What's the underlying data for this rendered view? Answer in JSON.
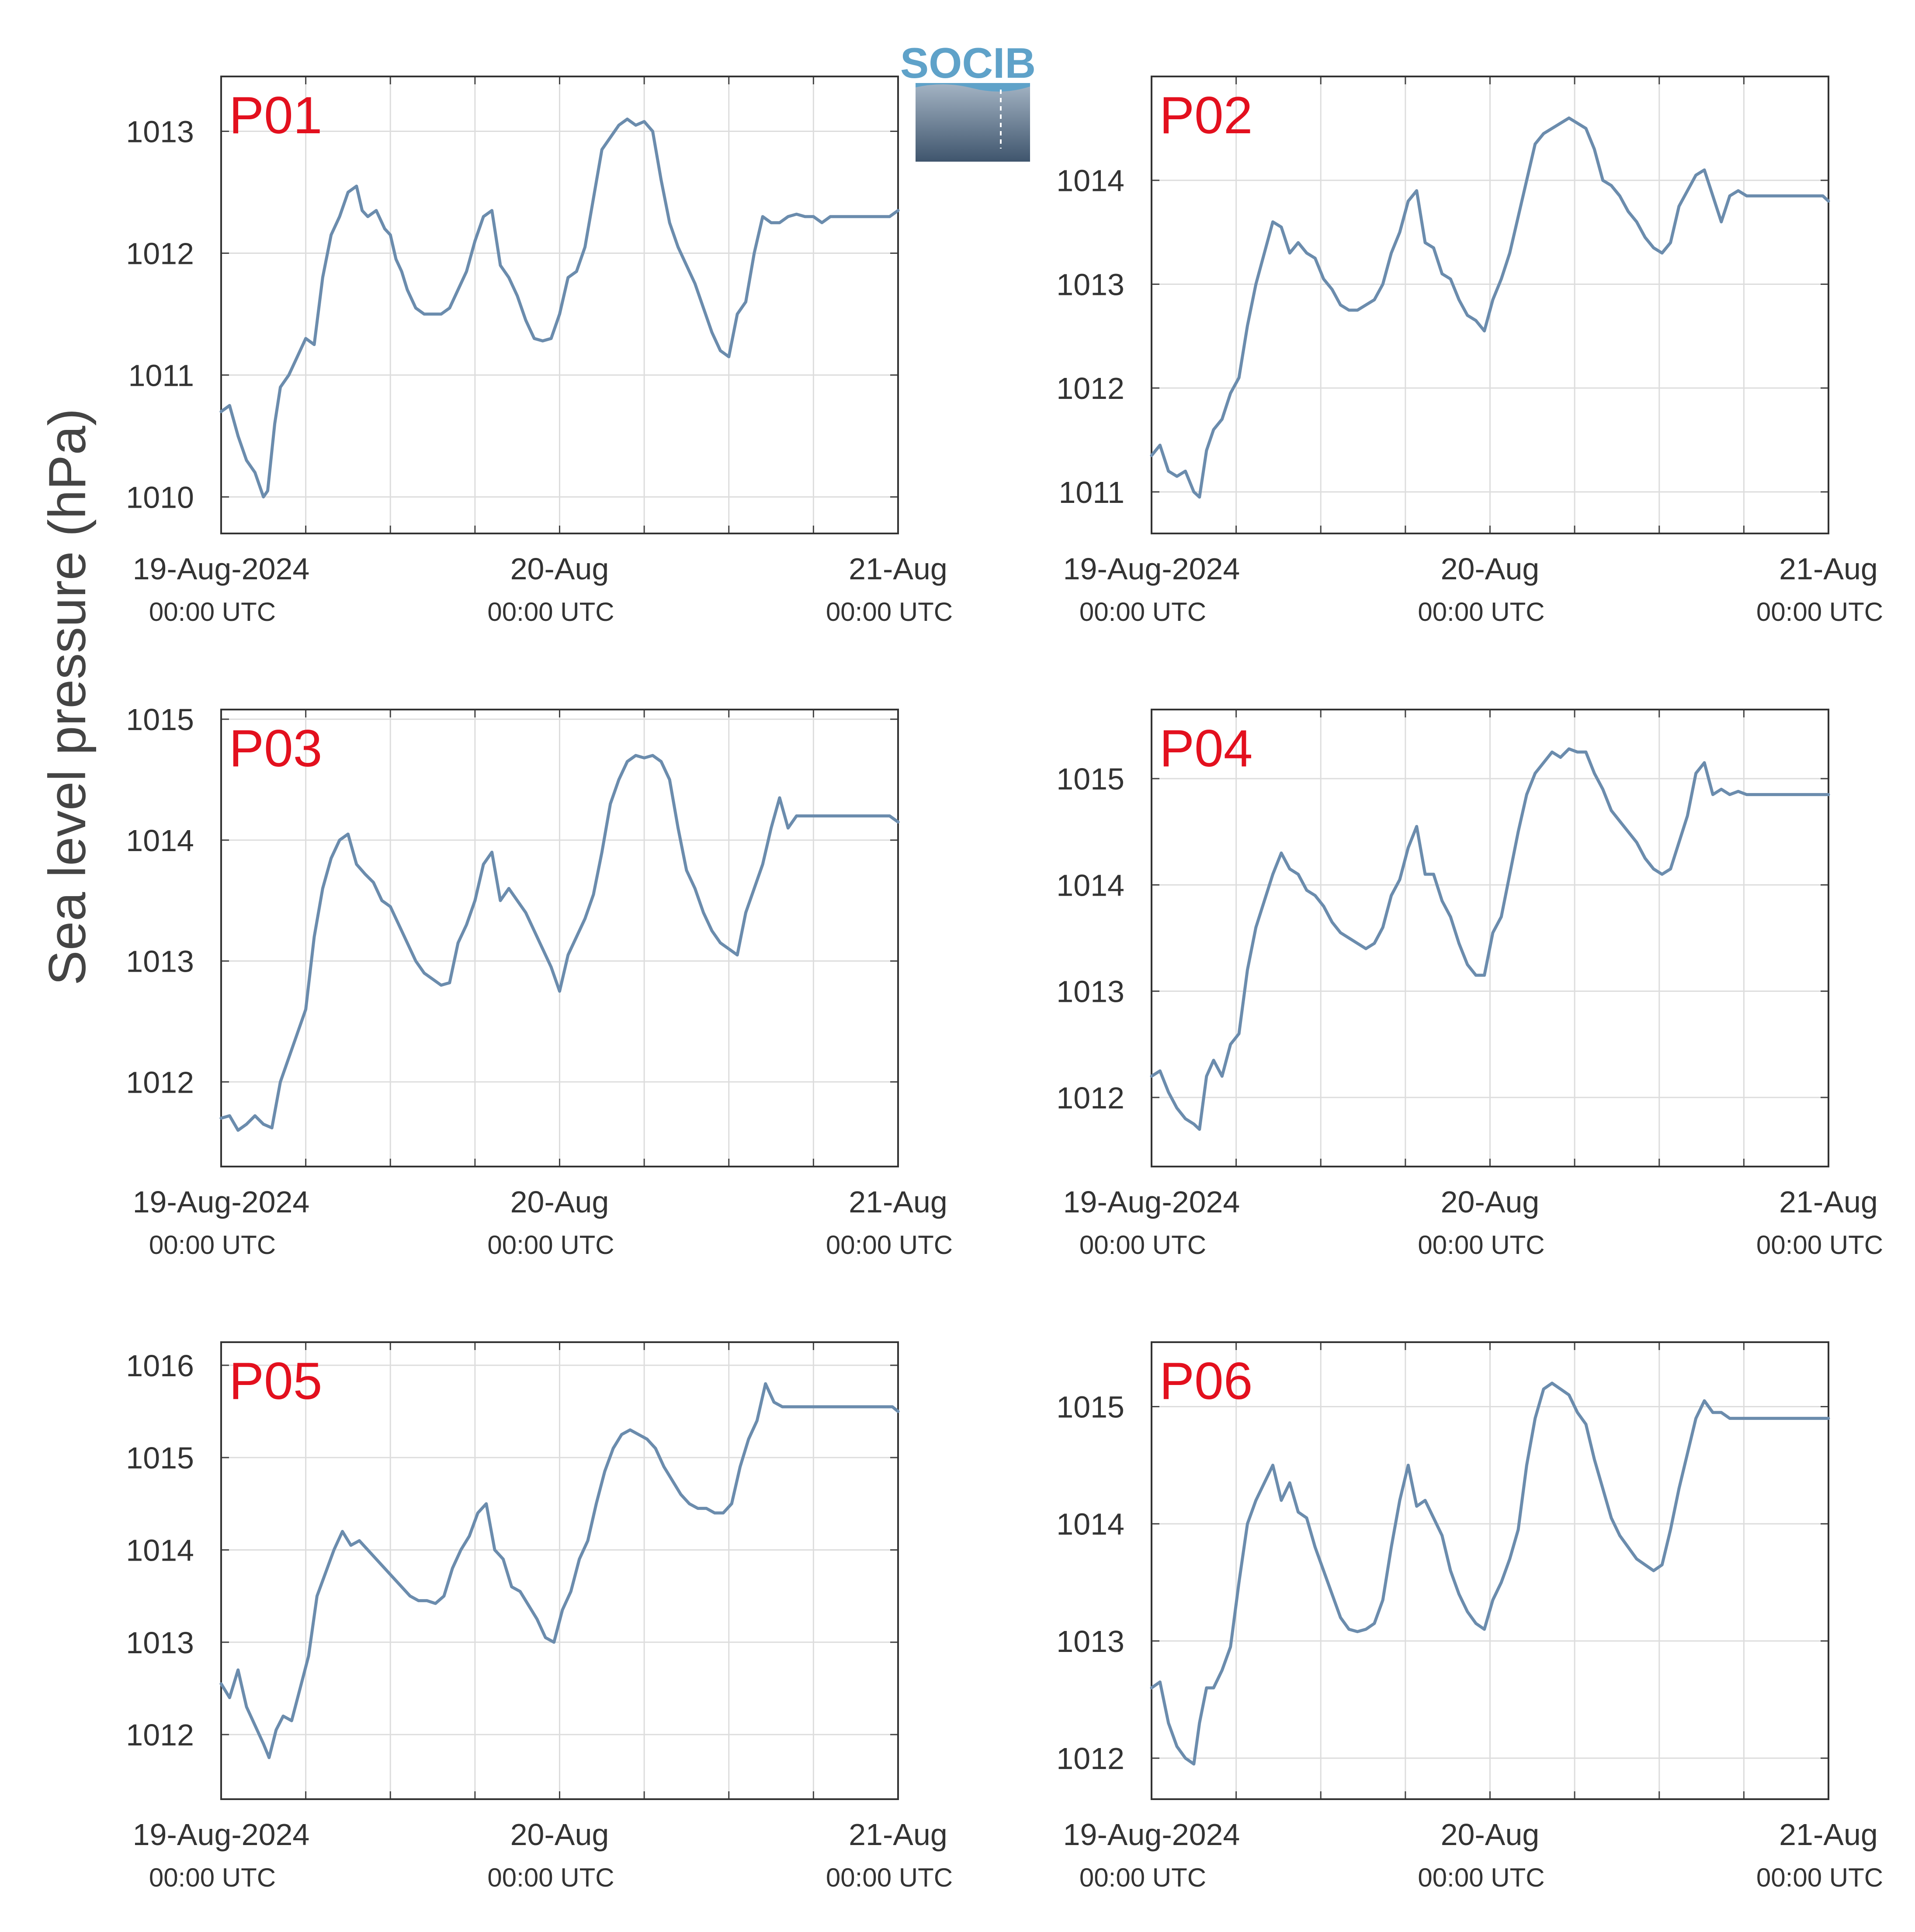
{
  "figure": {
    "ylabel": "Sea level pressure (hPa)",
    "logo_text": "SOCIB",
    "line_color": "#6b8cad",
    "panel_label_color": "#e3101e"
  },
  "x_ticks": [
    {
      "value": 0,
      "date": "19-Aug-2024",
      "time": "00:00 UTC"
    },
    {
      "value": 24,
      "date": "20-Aug",
      "time": "00:00 UTC"
    },
    {
      "value": 48,
      "date": "21-Aug",
      "time": "00:00 UTC"
    }
  ],
  "chart_data": [
    {
      "type": "line",
      "title": "P01",
      "x_unit": "hours since 19-Aug-2024 00:00 UTC",
      "xlim": [
        0,
        48
      ],
      "ylim": [
        1009.7,
        1013.45
      ],
      "yticks": [
        1010,
        1011,
        1012,
        1013
      ],
      "x": [
        0,
        0.6,
        1.2,
        1.8,
        2.4,
        3.0,
        3.3,
        3.8,
        4.2,
        4.8,
        5.4,
        6.0,
        6.6,
        7.2,
        7.8,
        8.4,
        9.0,
        9.6,
        10.0,
        10.4,
        11.0,
        11.6,
        12.0,
        12.4,
        12.8,
        13.2,
        13.8,
        14.4,
        15.0,
        15.6,
        16.2,
        16.8,
        17.4,
        18.0,
        18.6,
        19.2,
        19.8,
        20.4,
        21.0,
        21.6,
        22.2,
        22.8,
        23.4,
        24.0,
        24.6,
        25.2,
        25.8,
        26.4,
        27.0,
        27.6,
        28.2,
        28.8,
        29.4,
        30.0,
        30.6,
        31.2,
        31.8,
        32.4,
        33.0,
        33.6,
        34.2,
        34.8,
        35.4,
        36.0,
        36.6,
        37.2,
        37.8,
        38.4,
        39.0,
        39.6,
        40.2,
        40.8,
        41.4,
        42.0,
        42.6,
        43.2,
        43.8,
        44.4,
        45.0,
        45.6,
        46.2,
        46.8,
        47.4,
        48.0
      ],
      "y": [
        1010.7,
        1010.75,
        1010.5,
        1010.3,
        1010.2,
        1010.0,
        1010.05,
        1010.6,
        1010.9,
        1011.0,
        1011.15,
        1011.3,
        1011.25,
        1011.8,
        1012.15,
        1012.3,
        1012.5,
        1012.55,
        1012.35,
        1012.3,
        1012.35,
        1012.2,
        1012.15,
        1011.95,
        1011.85,
        1011.7,
        1011.55,
        1011.5,
        1011.5,
        1011.5,
        1011.55,
        1011.7,
        1011.85,
        1012.1,
        1012.3,
        1012.35,
        1011.9,
        1011.8,
        1011.65,
        1011.45,
        1011.3,
        1011.28,
        1011.3,
        1011.5,
        1011.8,
        1011.85,
        1012.05,
        1012.45,
        1012.85,
        1012.95,
        1013.05,
        1013.1,
        1013.05,
        1013.08,
        1013.0,
        1012.6,
        1012.25,
        1012.05,
        1011.9,
        1011.75,
        1011.55,
        1011.35,
        1011.2,
        1011.15,
        1011.5,
        1011.6,
        1012.0,
        1012.3,
        1012.25,
        1012.25,
        1012.3,
        1012.32,
        1012.3,
        1012.3,
        1012.25,
        1012.3,
        1012.3,
        1012.3,
        1012.3,
        1012.3,
        1012.3,
        1012.3,
        1012.3,
        1012.35
      ]
    },
    {
      "type": "line",
      "title": "P02",
      "x_unit": "hours since 19-Aug-2024 00:00 UTC",
      "xlim": [
        0,
        48
      ],
      "ylim": [
        1010.6,
        1015.0
      ],
      "yticks": [
        1011,
        1012,
        1013,
        1014
      ],
      "x": [
        0,
        0.6,
        1.2,
        1.8,
        2.4,
        3.0,
        3.4,
        3.9,
        4.4,
        5.0,
        5.6,
        6.2,
        6.8,
        7.4,
        8.0,
        8.6,
        9.2,
        9.8,
        10.4,
        11.0,
        11.6,
        12.2,
        12.8,
        13.4,
        14.0,
        14.6,
        15.2,
        15.8,
        16.4,
        17.0,
        17.6,
        18.2,
        18.8,
        19.4,
        20.0,
        20.6,
        21.2,
        21.8,
        22.4,
        23.0,
        23.6,
        24.2,
        24.8,
        25.4,
        26.0,
        26.6,
        27.2,
        27.8,
        28.4,
        29.0,
        29.6,
        30.2,
        30.8,
        31.4,
        32.0,
        32.6,
        33.2,
        33.8,
        34.4,
        35.0,
        35.6,
        36.2,
        36.8,
        37.4,
        38.0,
        38.6,
        39.2,
        39.8,
        40.4,
        41.0,
        41.6,
        42.2,
        42.8,
        43.4,
        44.0,
        44.6,
        45.2,
        45.8,
        46.4,
        47.0,
        47.6,
        48.0
      ],
      "y": [
        1011.35,
        1011.45,
        1011.2,
        1011.15,
        1011.2,
        1011.0,
        1010.95,
        1011.4,
        1011.6,
        1011.7,
        1011.95,
        1012.1,
        1012.6,
        1013.0,
        1013.3,
        1013.6,
        1013.55,
        1013.3,
        1013.4,
        1013.3,
        1013.25,
        1013.05,
        1012.95,
        1012.8,
        1012.75,
        1012.75,
        1012.8,
        1012.85,
        1013.0,
        1013.3,
        1013.5,
        1013.8,
        1013.9,
        1013.4,
        1013.35,
        1013.1,
        1013.05,
        1012.85,
        1012.7,
        1012.65,
        1012.55,
        1012.85,
        1013.05,
        1013.3,
        1013.65,
        1014.0,
        1014.35,
        1014.45,
        1014.5,
        1014.55,
        1014.6,
        1014.55,
        1014.5,
        1014.3,
        1014.0,
        1013.95,
        1013.85,
        1013.7,
        1013.6,
        1013.45,
        1013.35,
        1013.3,
        1013.4,
        1013.75,
        1013.9,
        1014.05,
        1014.1,
        1013.85,
        1013.6,
        1013.85,
        1013.9,
        1013.85,
        1013.85,
        1013.85,
        1013.85,
        1013.85,
        1013.85,
        1013.85,
        1013.85,
        1013.85,
        1013.85,
        1013.8
      ]
    },
    {
      "type": "line",
      "title": "P03",
      "x_unit": "hours since 19-Aug-2024 00:00 UTC",
      "xlim": [
        0,
        48
      ],
      "ylim": [
        1011.3,
        1015.08
      ],
      "yticks": [
        1012,
        1013,
        1014,
        1015
      ],
      "x": [
        0,
        0.6,
        1.2,
        1.8,
        2.4,
        3.0,
        3.6,
        4.2,
        4.8,
        5.4,
        6.0,
        6.6,
        7.2,
        7.8,
        8.4,
        9.0,
        9.6,
        10.2,
        10.8,
        11.4,
        12.0,
        12.6,
        13.2,
        13.8,
        14.4,
        15.0,
        15.6,
        16.2,
        16.8,
        17.4,
        18.0,
        18.6,
        19.2,
        19.8,
        20.4,
        21.0,
        21.6,
        22.2,
        22.8,
        23.4,
        24.0,
        24.6,
        25.2,
        25.8,
        26.4,
        27.0,
        27.6,
        28.2,
        28.8,
        29.4,
        30.0,
        30.6,
        31.2,
        31.8,
        32.4,
        33.0,
        33.6,
        34.2,
        34.8,
        35.4,
        36.0,
        36.6,
        37.2,
        37.8,
        38.4,
        39.0,
        39.6,
        40.2,
        40.8,
        41.4,
        42.0,
        42.6,
        43.2,
        43.8,
        44.4,
        45.0,
        45.6,
        46.2,
        46.8,
        47.4,
        48.0
      ],
      "y": [
        1011.7,
        1011.72,
        1011.6,
        1011.65,
        1011.72,
        1011.65,
        1011.62,
        1012.0,
        1012.2,
        1012.4,
        1012.6,
        1013.2,
        1013.6,
        1013.85,
        1014.0,
        1014.05,
        1013.8,
        1013.72,
        1013.65,
        1013.5,
        1013.45,
        1013.3,
        1013.15,
        1013.0,
        1012.9,
        1012.85,
        1012.8,
        1012.82,
        1013.15,
        1013.3,
        1013.5,
        1013.8,
        1013.9,
        1013.5,
        1013.6,
        1013.5,
        1013.4,
        1013.25,
        1013.1,
        1012.95,
        1012.75,
        1013.05,
        1013.2,
        1013.35,
        1013.55,
        1013.9,
        1014.3,
        1014.5,
        1014.65,
        1014.7,
        1014.68,
        1014.7,
        1014.65,
        1014.5,
        1014.1,
        1013.75,
        1013.6,
        1013.4,
        1013.25,
        1013.15,
        1013.1,
        1013.05,
        1013.4,
        1013.6,
        1013.8,
        1014.1,
        1014.35,
        1014.1,
        1014.2,
        1014.2,
        1014.2,
        1014.2,
        1014.2,
        1014.2,
        1014.2,
        1014.2,
        1014.2,
        1014.2,
        1014.2,
        1014.2,
        1014.15
      ]
    },
    {
      "type": "line",
      "title": "P04",
      "x_unit": "hours since 19-Aug-2024 00:00 UTC",
      "xlim": [
        0,
        48
      ],
      "ylim": [
        1011.35,
        1015.65
      ],
      "yticks": [
        1012,
        1013,
        1014,
        1015
      ],
      "x": [
        0,
        0.6,
        1.2,
        1.8,
        2.4,
        3.0,
        3.4,
        3.9,
        4.4,
        5.0,
        5.6,
        6.2,
        6.8,
        7.4,
        8.0,
        8.6,
        9.2,
        9.8,
        10.4,
        11.0,
        11.6,
        12.2,
        12.8,
        13.4,
        14.0,
        14.6,
        15.2,
        15.8,
        16.4,
        17.0,
        17.6,
        18.2,
        18.8,
        19.4,
        20.0,
        20.6,
        21.2,
        21.8,
        22.4,
        23.0,
        23.6,
        24.2,
        24.8,
        25.4,
        26.0,
        26.6,
        27.2,
        27.8,
        28.4,
        29.0,
        29.6,
        30.2,
        30.8,
        31.4,
        32.0,
        32.6,
        33.2,
        33.8,
        34.4,
        35.0,
        35.6,
        36.2,
        36.8,
        37.4,
        38.0,
        38.6,
        39.2,
        39.8,
        40.4,
        41.0,
        41.6,
        42.2,
        42.8,
        43.4,
        44.0,
        44.6,
        45.2,
        45.8,
        46.4,
        47.0,
        47.6,
        48.0
      ],
      "y": [
        1012.2,
        1012.25,
        1012.05,
        1011.9,
        1011.8,
        1011.75,
        1011.7,
        1012.2,
        1012.35,
        1012.2,
        1012.5,
        1012.6,
        1013.2,
        1013.6,
        1013.85,
        1014.1,
        1014.3,
        1014.15,
        1014.1,
        1013.95,
        1013.9,
        1013.8,
        1013.65,
        1013.55,
        1013.5,
        1013.45,
        1013.4,
        1013.45,
        1013.6,
        1013.9,
        1014.05,
        1014.35,
        1014.55,
        1014.1,
        1014.1,
        1013.85,
        1013.7,
        1013.45,
        1013.25,
        1013.15,
        1013.15,
        1013.55,
        1013.7,
        1014.1,
        1014.5,
        1014.85,
        1015.05,
        1015.15,
        1015.25,
        1015.2,
        1015.28,
        1015.25,
        1015.25,
        1015.05,
        1014.9,
        1014.7,
        1014.6,
        1014.5,
        1014.4,
        1014.25,
        1014.15,
        1014.1,
        1014.15,
        1014.4,
        1014.65,
        1015.05,
        1015.15,
        1014.85,
        1014.9,
        1014.85,
        1014.88,
        1014.85,
        1014.85,
        1014.85,
        1014.85,
        1014.85,
        1014.85,
        1014.85,
        1014.85,
        1014.85,
        1014.85,
        1014.85
      ]
    },
    {
      "type": "line",
      "title": "P05",
      "x_unit": "hours since 19-Aug-2024 00:00 UTC",
      "xlim": [
        0,
        48
      ],
      "ylim": [
        1011.3,
        1016.25
      ],
      "yticks": [
        1012,
        1013,
        1014,
        1015,
        1016
      ],
      "x": [
        0,
        0.6,
        1.2,
        1.8,
        2.4,
        3.0,
        3.4,
        3.9,
        4.4,
        5.0,
        5.6,
        6.2,
        6.8,
        7.4,
        8.0,
        8.6,
        9.2,
        9.8,
        10.4,
        11.0,
        11.6,
        12.2,
        12.8,
        13.4,
        14.0,
        14.6,
        15.2,
        15.8,
        16.4,
        17.0,
        17.6,
        18.2,
        18.8,
        19.4,
        20.0,
        20.6,
        21.2,
        21.8,
        22.4,
        23.0,
        23.6,
        24.2,
        24.8,
        25.4,
        26.0,
        26.6,
        27.2,
        27.8,
        28.4,
        29.0,
        29.6,
        30.2,
        30.8,
        31.4,
        32.0,
        32.6,
        33.2,
        33.8,
        34.4,
        35.0,
        35.6,
        36.2,
        36.8,
        37.4,
        38.0,
        38.6,
        39.2,
        39.8,
        40.4,
        41.0,
        41.6,
        42.2,
        42.8,
        43.4,
        44.0,
        44.6,
        45.2,
        45.8,
        46.4,
        47.0,
        47.6,
        48.0
      ],
      "y": [
        1012.55,
        1012.4,
        1012.7,
        1012.3,
        1012.1,
        1011.9,
        1011.75,
        1012.05,
        1012.2,
        1012.15,
        1012.5,
        1012.85,
        1013.5,
        1013.75,
        1014.0,
        1014.2,
        1014.05,
        1014.1,
        1014.0,
        1013.9,
        1013.8,
        1013.7,
        1013.6,
        1013.5,
        1013.45,
        1013.45,
        1013.42,
        1013.5,
        1013.8,
        1014.0,
        1014.15,
        1014.4,
        1014.5,
        1014.0,
        1013.9,
        1013.6,
        1013.55,
        1013.4,
        1013.25,
        1013.05,
        1013.0,
        1013.35,
        1013.55,
        1013.9,
        1014.1,
        1014.5,
        1014.85,
        1015.1,
        1015.25,
        1015.3,
        1015.25,
        1015.2,
        1015.1,
        1014.9,
        1014.75,
        1014.6,
        1014.5,
        1014.45,
        1014.45,
        1014.4,
        1014.4,
        1014.5,
        1014.9,
        1015.2,
        1015.4,
        1015.8,
        1015.6,
        1015.55,
        1015.55,
        1015.55,
        1015.55,
        1015.55,
        1015.55,
        1015.55,
        1015.55,
        1015.55,
        1015.55,
        1015.55,
        1015.55,
        1015.55,
        1015.55,
        1015.5
      ]
    },
    {
      "type": "line",
      "title": "P06",
      "x_unit": "hours since 19-Aug-2024 00:00 UTC",
      "xlim": [
        0,
        48
      ],
      "ylim": [
        1011.65,
        1015.55
      ],
      "yticks": [
        1012,
        1013,
        1014,
        1015
      ],
      "x": [
        0,
        0.6,
        1.2,
        1.8,
        2.4,
        3.0,
        3.4,
        3.9,
        4.4,
        5.0,
        5.6,
        6.2,
        6.8,
        7.4,
        8.0,
        8.6,
        9.2,
        9.8,
        10.4,
        11.0,
        11.6,
        12.2,
        12.8,
        13.4,
        14.0,
        14.6,
        15.2,
        15.8,
        16.4,
        17.0,
        17.6,
        18.2,
        18.8,
        19.4,
        20.0,
        20.6,
        21.2,
        21.8,
        22.4,
        23.0,
        23.6,
        24.2,
        24.8,
        25.4,
        26.0,
        26.6,
        27.2,
        27.8,
        28.4,
        29.0,
        29.6,
        30.2,
        30.8,
        31.4,
        32.0,
        32.6,
        33.2,
        33.8,
        34.4,
        35.0,
        35.6,
        36.2,
        36.8,
        37.4,
        38.0,
        38.6,
        39.2,
        39.8,
        40.4,
        41.0,
        41.6,
        42.2,
        42.8,
        43.4,
        44.0,
        44.6,
        45.2,
        45.8,
        46.4,
        47.0,
        47.6,
        48.0
      ],
      "y": [
        1012.6,
        1012.65,
        1012.3,
        1012.1,
        1012.0,
        1011.95,
        1012.3,
        1012.6,
        1012.6,
        1012.75,
        1012.95,
        1013.5,
        1014.0,
        1014.2,
        1014.35,
        1014.5,
        1014.2,
        1014.35,
        1014.1,
        1014.05,
        1013.8,
        1013.6,
        1013.4,
        1013.2,
        1013.1,
        1013.08,
        1013.1,
        1013.15,
        1013.35,
        1013.8,
        1014.2,
        1014.5,
        1014.15,
        1014.2,
        1014.05,
        1013.9,
        1013.6,
        1013.4,
        1013.25,
        1013.15,
        1013.1,
        1013.35,
        1013.5,
        1013.7,
        1013.95,
        1014.5,
        1014.9,
        1015.15,
        1015.2,
        1015.15,
        1015.1,
        1014.95,
        1014.85,
        1014.55,
        1014.3,
        1014.05,
        1013.9,
        1013.8,
        1013.7,
        1013.65,
        1013.6,
        1013.65,
        1013.95,
        1014.3,
        1014.6,
        1014.9,
        1015.05,
        1014.95,
        1014.95,
        1014.9,
        1014.9,
        1014.9,
        1014.9,
        1014.9,
        1014.9,
        1014.9,
        1014.9,
        1014.9,
        1014.9,
        1014.9,
        1014.9,
        1014.9
      ]
    }
  ]
}
